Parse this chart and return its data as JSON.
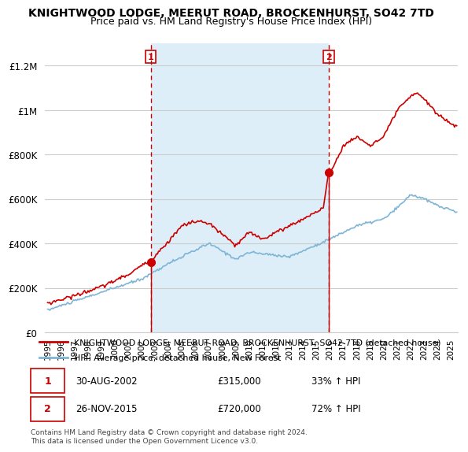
{
  "title": "KNIGHTWOOD LODGE, MEERUT ROAD, BROCKENHURST, SO42 7TD",
  "subtitle": "Price paid vs. HM Land Registry's House Price Index (HPI)",
  "legend_line1": "KNIGHTWOOD LODGE, MEERUT ROAD, BROCKENHURST, SO42 7TD (detached house)",
  "legend_line2": "HPI: Average price, detached house, New Forest",
  "footnote": "Contains HM Land Registry data © Crown copyright and database right 2024.\nThis data is licensed under the Open Government Licence v3.0.",
  "sale1_date": "30-AUG-2002",
  "sale1_price": "£315,000",
  "sale1_hpi": "33% ↑ HPI",
  "sale2_date": "26-NOV-2015",
  "sale2_price": "£720,000",
  "sale2_hpi": "72% ↑ HPI",
  "sale1_x": 2002.66,
  "sale1_y": 315000,
  "sale2_x": 2015.9,
  "sale2_y": 720000,
  "x_min": 1994.8,
  "x_max": 2025.5,
  "y_min": 0,
  "y_max": 1300000,
  "y_ticks": [
    0,
    200000,
    400000,
    600000,
    800000,
    1000000,
    1200000
  ],
  "y_tick_labels": [
    "£0",
    "£200K",
    "£400K",
    "£600K",
    "£800K",
    "£1M",
    "£1.2M"
  ],
  "red_color": "#cc0000",
  "blue_color": "#7eb5d6",
  "shade_color": "#ddeef8",
  "vline_color": "#cc0000",
  "grid_color": "#cccccc",
  "bg_color": "#ffffff"
}
